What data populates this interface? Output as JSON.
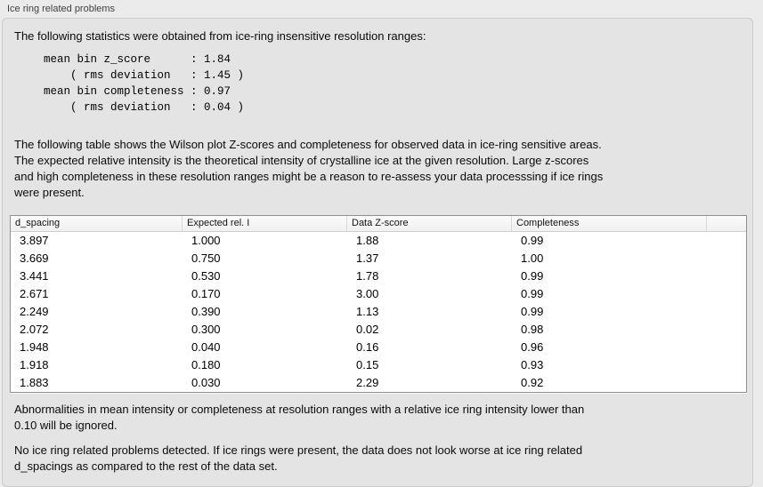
{
  "panel": {
    "title": "Ice ring related problems"
  },
  "intro_text": "The following statistics were obtained from ice-ring insensitive resolution ranges:",
  "stats_block": "mean bin z_score      : 1.84\n    ( rms deviation   : 1.45 )\nmean bin completeness : 0.97\n    ( rms deviation   : 0.04 )",
  "table_description": "The following table shows the Wilson plot Z-scores and completeness for observed data in ice-ring sensitive areas.\nThe expected relative intensity is the theoretical intensity of crystalline ice at the given resolution. Large z-scores\nand high completeness in these resolution ranges might be a reason to re-assess your data processsing if ice rings\nwere present.",
  "table": {
    "columns": [
      "d_spacing",
      "Expected rel. I",
      "Data Z-score",
      "Completeness"
    ],
    "rows": [
      [
        "3.897",
        "1.000",
        "1.88",
        "0.99"
      ],
      [
        "3.669",
        "0.750",
        "1.37",
        "1.00"
      ],
      [
        "3.441",
        "0.530",
        "1.78",
        "0.99"
      ],
      [
        "2.671",
        "0.170",
        "3.00",
        "0.99"
      ],
      [
        "2.249",
        "0.390",
        "1.13",
        "0.99"
      ],
      [
        "2.072",
        "0.300",
        "0.02",
        "0.98"
      ],
      [
        "1.948",
        "0.040",
        "0.16",
        "0.96"
      ],
      [
        "1.918",
        "0.180",
        "0.15",
        "0.93"
      ],
      [
        "1.883",
        "0.030",
        "2.29",
        "0.92"
      ]
    ]
  },
  "ignore_note": "Abnormalities in mean intensity or completeness at resolution ranges with a relative ice ring intensity lower than\n0.10 will be ignored.",
  "conclusion": "No ice ring related problems detected. If ice rings were present, the data does not look worse at ice ring related\nd_spacings as compared to the rest of the data set.",
  "colors": {
    "page_bg": "#ebebeb",
    "panel_bg": "#e4e4e4",
    "panel_border": "#cbcbcb",
    "table_border": "#8f8f8f",
    "table_header_bg": "#f5f5f5"
  }
}
